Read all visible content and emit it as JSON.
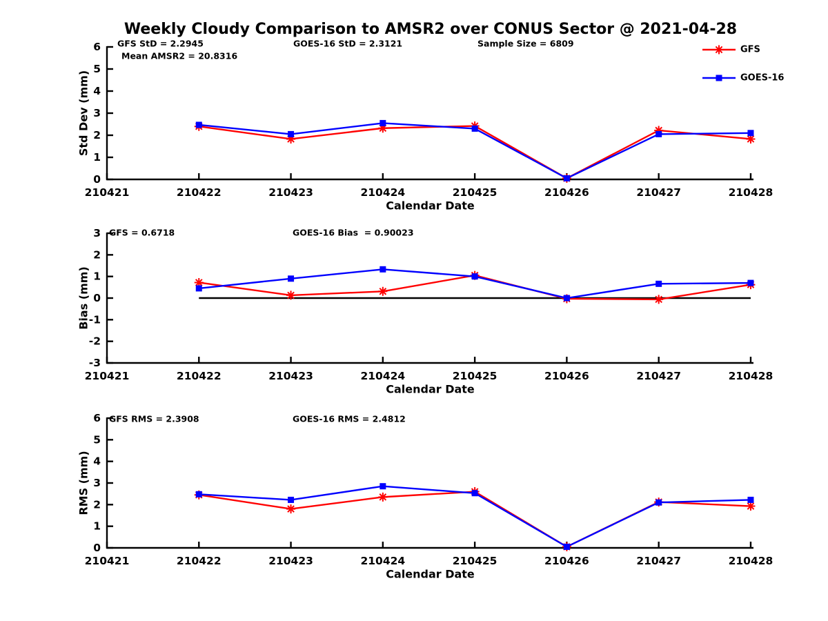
{
  "title": "Weekly Cloudy Comparison to AMSR2 over CONUS Sector @ 2021-04-28",
  "colors": {
    "gfs": "#ff0000",
    "goes16": "#0000ff",
    "axis": "#000000",
    "background": "#ffffff"
  },
  "legend": {
    "position": "top-right",
    "entries": [
      {
        "label": "GFS",
        "color": "#ff0000",
        "marker": "asterisk"
      },
      {
        "label": "GOES-16",
        "color": "#0000ff",
        "marker": "square"
      }
    ]
  },
  "chart_data": [
    {
      "type": "line",
      "name": "std-dev-plot",
      "ylabel": "Std Dev (mm)",
      "xlabel": "Calendar Date",
      "ylim": [
        0,
        6
      ],
      "yticks": [
        0,
        1,
        2,
        3,
        4,
        5,
        6
      ],
      "x_categories": [
        "210421",
        "210422",
        "210423",
        "210424",
        "210425",
        "210426",
        "210427",
        "210428"
      ],
      "annotations": [
        "GFS StD = 2.2945",
        "Mean AMSR2 = 20.8316",
        "GOES-16 StD = 2.3121",
        "Sample Size = 6809"
      ],
      "zero_line": false,
      "series": [
        {
          "name": "GFS",
          "color": "#ff0000",
          "marker": "asterisk",
          "x": [
            "210422",
            "210423",
            "210424",
            "210425",
            "210426",
            "210427",
            "210428"
          ],
          "values": [
            2.4,
            1.83,
            2.32,
            2.42,
            0.05,
            2.22,
            1.83
          ]
        },
        {
          "name": "GOES-16",
          "color": "#0000ff",
          "marker": "square",
          "x": [
            "210422",
            "210423",
            "210424",
            "210425",
            "210426",
            "210427",
            "210428"
          ],
          "values": [
            2.47,
            2.05,
            2.55,
            2.3,
            0.05,
            2.05,
            2.1
          ]
        }
      ]
    },
    {
      "type": "line",
      "name": "bias-plot",
      "ylabel": "Bias (mm)",
      "xlabel": "Calendar Date",
      "ylim": [
        -3,
        3
      ],
      "yticks": [
        -3,
        -2,
        -1,
        0,
        1,
        2,
        3
      ],
      "x_categories": [
        "210421",
        "210422",
        "210423",
        "210424",
        "210425",
        "210426",
        "210427",
        "210428"
      ],
      "annotations": [
        "GFS = 0.6718",
        "GOES-16 Bias  = 0.90023"
      ],
      "zero_line": true,
      "series": [
        {
          "name": "GFS",
          "color": "#ff0000",
          "marker": "asterisk",
          "x": [
            "210422",
            "210423",
            "210424",
            "210425",
            "210426",
            "210427",
            "210428"
          ],
          "values": [
            0.72,
            0.13,
            0.31,
            1.05,
            -0.03,
            -0.06,
            0.62
          ]
        },
        {
          "name": "GOES-16",
          "color": "#0000ff",
          "marker": "square",
          "x": [
            "210422",
            "210423",
            "210424",
            "210425",
            "210426",
            "210427",
            "210428"
          ],
          "values": [
            0.45,
            0.9,
            1.33,
            1.0,
            0.0,
            0.66,
            0.7
          ]
        }
      ]
    },
    {
      "type": "line",
      "name": "rms-plot",
      "ylabel": "RMS (mm)",
      "xlabel": "Calendar Date",
      "ylim": [
        0,
        6
      ],
      "yticks": [
        0,
        1,
        2,
        3,
        4,
        5,
        6
      ],
      "x_categories": [
        "210421",
        "210422",
        "210423",
        "210424",
        "210425",
        "210426",
        "210427",
        "210428"
      ],
      "annotations": [
        "GFS RMS = 2.3908",
        "GOES-16 RMS = 2.4812"
      ],
      "zero_line": false,
      "series": [
        {
          "name": "GFS",
          "color": "#ff0000",
          "marker": "asterisk",
          "x": [
            "210422",
            "210423",
            "210424",
            "210425",
            "210426",
            "210427",
            "210428"
          ],
          "values": [
            2.45,
            1.8,
            2.35,
            2.6,
            0.05,
            2.12,
            1.93
          ]
        },
        {
          "name": "GOES-16",
          "color": "#0000ff",
          "marker": "square",
          "x": [
            "210422",
            "210423",
            "210424",
            "210425",
            "210426",
            "210427",
            "210428"
          ],
          "values": [
            2.48,
            2.22,
            2.85,
            2.53,
            0.05,
            2.1,
            2.22
          ]
        }
      ]
    }
  ]
}
